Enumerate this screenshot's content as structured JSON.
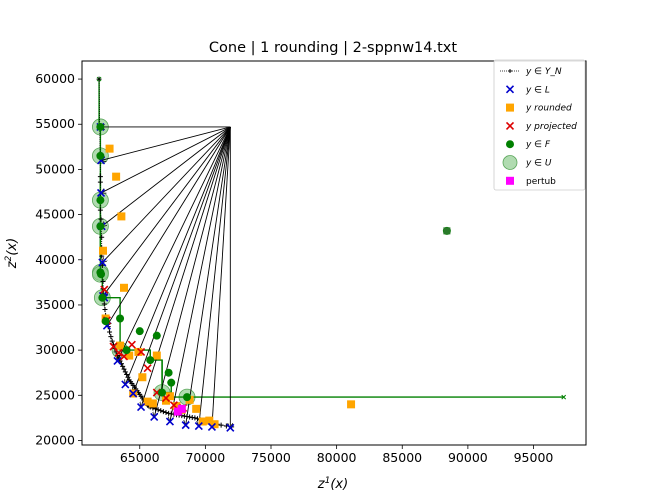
{
  "chart_data": {
    "type": "scatter",
    "title": "Cone | 1 rounding | 2-sppnw14.txt",
    "xlabel": "z¹(x)",
    "ylabel": "z²(x)",
    "xlim": [
      60600,
      99000
    ],
    "ylim": [
      19500,
      62000
    ],
    "x_ticks": [
      65000,
      70000,
      75000,
      80000,
      85000,
      90000,
      95000
    ],
    "x_tick_labels": [
      "65000",
      "70000",
      "75000",
      "80000",
      "85000",
      "90000",
      "95000"
    ],
    "y_ticks": [
      20000,
      25000,
      30000,
      35000,
      40000,
      45000,
      50000,
      55000,
      60000
    ],
    "y_tick_labels": [
      "20000",
      "25000",
      "30000",
      "35000",
      "40000",
      "45000",
      "50000",
      "55000",
      "60000"
    ],
    "legend_position": "upper-right",
    "legend": [
      {
        "key": "YN",
        "label": "y ∈ Y_N"
      },
      {
        "key": "L",
        "label": "y ∈ L"
      },
      {
        "key": "rounded",
        "label": "y rounded"
      },
      {
        "key": "projected",
        "label": "y projected"
      },
      {
        "key": "F",
        "label": "y ∈ F"
      },
      {
        "key": "U",
        "label": "y ∈ U"
      },
      {
        "key": "pertub",
        "label": "pertub"
      }
    ],
    "colors": {
      "YN": "#000000",
      "L": "#0000cc",
      "rounded": "#ffa500",
      "projected": "#dd0000",
      "F": "#008000",
      "U": "#8fcc8f",
      "pertub": "#ff00ff",
      "cone_arrows": "#000000"
    },
    "cone_apex": [
      71900,
      54700
    ],
    "series": {
      "YN": {
        "x": [
          61900,
          62000,
          62000,
          62000,
          62000,
          62050,
          62050,
          62100,
          62100,
          62100,
          62150,
          62150,
          62200,
          62200,
          62250,
          62300,
          62350,
          62400,
          62500,
          62600,
          62700,
          62800,
          62900,
          63000,
          63100,
          63200,
          63300,
          63400,
          63500,
          63600,
          63700,
          63800,
          63900,
          64000,
          64100,
          64200,
          64300,
          64400,
          64500,
          64600,
          64700,
          64800,
          64900,
          65000,
          65100,
          65200,
          65300,
          65400,
          65500,
          65600,
          65700,
          65800,
          66000,
          66200,
          66400,
          66600,
          66800,
          67000,
          67200,
          67400,
          67600,
          67800,
          68000,
          68200,
          68400,
          68600,
          68800,
          69000,
          69200,
          69400,
          69600,
          69800,
          70000,
          70300,
          70600,
          70900,
          71200,
          71600,
          72000
        ],
        "y": [
          60000,
          49200,
          48600,
          46500,
          45500,
          44500,
          43600,
          42500,
          41300,
          40400,
          39400,
          38500,
          37600,
          36800,
          35900,
          35100,
          34500,
          33800,
          33200,
          32600,
          32000,
          31500,
          31000,
          30600,
          30200,
          29800,
          29400,
          29100,
          28800,
          28500,
          28200,
          27900,
          27600,
          27300,
          27000,
          26700,
          26500,
          26300,
          26100,
          25900,
          25700,
          25500,
          25300,
          25100,
          24900,
          24700,
          24500,
          24300,
          24100,
          23900,
          23800,
          23700,
          23600,
          23500,
          23400,
          23300,
          23200,
          23100,
          23000,
          22950,
          22900,
          22850,
          22800,
          22750,
          22700,
          22650,
          22600,
          22550,
          22500,
          22400,
          22300,
          22200,
          22100,
          22000,
          21900,
          21800,
          21700,
          21600,
          21500
        ]
      },
      "L": {
        "x": [
          62000,
          62050,
          62050,
          62100,
          62150,
          62200,
          62300,
          62500,
          63300,
          63900,
          64500,
          65100,
          66100,
          67300,
          68500,
          69500,
          70500,
          71900
        ],
        "y": [
          54700,
          51000,
          47400,
          43700,
          39700,
          36000,
          35800,
          32700,
          28800,
          26200,
          25200,
          23700,
          22600,
          22100,
          21700,
          21600,
          21500,
          21400
        ]
      },
      "rounded": {
        "x": [
          62700,
          62200,
          63200,
          63600,
          63800,
          64200,
          64500,
          64900,
          65200,
          65600,
          66000,
          66300,
          67000,
          67300,
          67800,
          68200,
          68800,
          69300,
          69800,
          70300,
          70700,
          81100,
          62400,
          63500
        ],
        "y": [
          52300,
          41000,
          49200,
          44800,
          36900,
          29400,
          25200,
          29800,
          27000,
          24300,
          24100,
          29400,
          24400,
          24900,
          23800,
          23400,
          24500,
          23500,
          22100,
          22200,
          21800,
          24000,
          33500,
          30500
        ]
      },
      "projected": {
        "x": [
          62300,
          62500,
          63000,
          63400,
          63800,
          64400,
          65100,
          65600,
          66300,
          67000,
          67600,
          68300
        ],
        "y": [
          36700,
          33300,
          30400,
          29700,
          29300,
          30600,
          29800,
          28000,
          25300,
          24700,
          23900,
          23600
        ]
      },
      "F": {
        "x": [
          62000,
          62000,
          62000,
          62000,
          62000,
          62050,
          62150,
          62400,
          63500,
          64000,
          65000,
          65800,
          66300,
          66700,
          67200,
          67400,
          68600,
          88400
        ],
        "y": [
          54700,
          51500,
          46600,
          43700,
          38600,
          38400,
          35800,
          33200,
          33500,
          30000,
          32100,
          28900,
          31600,
          25300,
          27500,
          26400,
          24800,
          43200
        ]
      },
      "U": {
        "x": [
          62000,
          62000,
          62000,
          62000,
          62000,
          62000,
          62150,
          63500,
          66700,
          68600
        ],
        "y": [
          54700,
          51500,
          46600,
          43700,
          38600,
          38400,
          35800,
          30000,
          25300,
          24800
        ]
      },
      "pertub": {
        "x": [
          68200,
          67900
        ],
        "y": [
          23500,
          23200
        ]
      }
    },
    "cone_targets": [
      [
        62000,
        54700
      ],
      [
        62050,
        51000
      ],
      [
        62050,
        47400
      ],
      [
        62100,
        43700
      ],
      [
        62150,
        39700
      ],
      [
        62200,
        36000
      ],
      [
        62500,
        32700
      ],
      [
        63300,
        28800
      ],
      [
        63900,
        26200
      ],
      [
        64500,
        25200
      ],
      [
        65100,
        23700
      ],
      [
        66100,
        22600
      ],
      [
        67300,
        22100
      ],
      [
        68500,
        21700
      ],
      [
        69500,
        21600
      ],
      [
        70500,
        21500
      ],
      [
        71900,
        21400
      ]
    ],
    "F_steps": [
      [
        [
          61900,
          60000
        ],
        [
          61900,
          54700
        ],
        [
          62000,
          54700
        ],
        [
          62000,
          51500
        ],
        [
          62000,
          46600
        ],
        [
          62000,
          43700
        ],
        [
          62000,
          38600
        ],
        [
          62000,
          38400
        ],
        [
          62150,
          38400
        ],
        [
          62150,
          35800
        ],
        [
          63500,
          35800
        ],
        [
          63500,
          30000
        ],
        [
          65800,
          30000
        ],
        [
          65800,
          28900
        ],
        [
          66700,
          28900
        ],
        [
          66700,
          25300
        ],
        [
          67400,
          25300
        ],
        [
          67400,
          24800
        ],
        [
          97300,
          24800
        ]
      ]
    ]
  }
}
